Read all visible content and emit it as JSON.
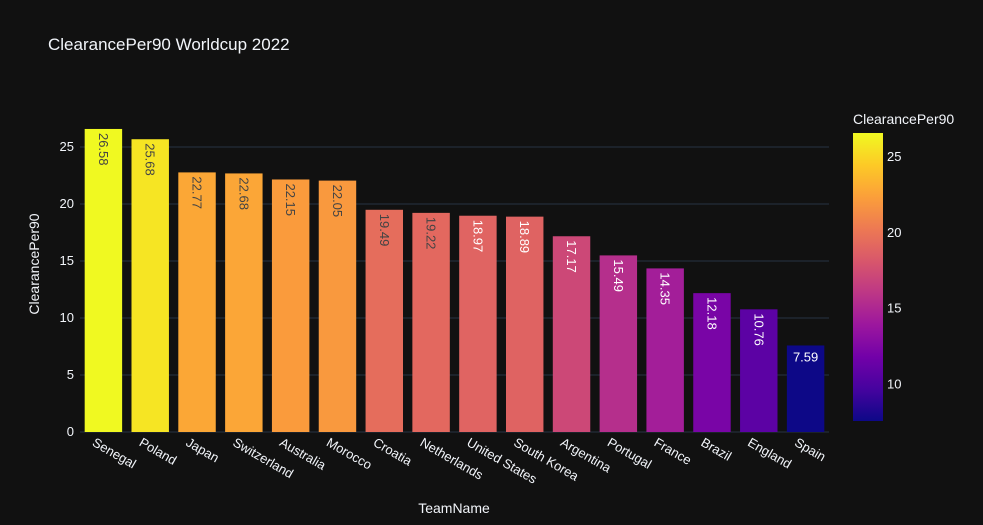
{
  "chart_data": {
    "type": "bar",
    "title": "ClearancePer90 Worldcup 2022",
    "xlabel": "TeamName",
    "ylabel": "ClearancePer90",
    "categories": [
      "Senegal",
      "Poland",
      "Japan",
      "Switzerland",
      "Australia",
      "Morocco",
      "Croatia",
      "Netherlands",
      "United States",
      "South Korea",
      "Argentina",
      "Portugal",
      "France",
      "Brazil",
      "England",
      "Spain"
    ],
    "values": [
      26.58,
      25.68,
      22.77,
      22.68,
      22.15,
      22.05,
      19.49,
      19.22,
      18.97,
      18.89,
      17.17,
      15.49,
      14.35,
      12.18,
      10.76,
      7.59
    ],
    "value_labels": [
      "26.58",
      "25.68",
      "22.77",
      "22.68",
      "22.15",
      "22.05",
      "19.49",
      "19.22",
      "18.97",
      "18.89",
      "17.17",
      "15.49",
      "14.35",
      "12.18",
      "10.76",
      "7.59"
    ],
    "ylim": [
      0,
      27.98
    ],
    "yticks": [
      0,
      5,
      10,
      15,
      20,
      25
    ],
    "grid": true,
    "colorbar": {
      "title": "ClearancePer90",
      "range": [
        7.59,
        26.58
      ],
      "ticks": [
        10,
        15,
        20,
        25
      ],
      "colorscale": [
        "#0d0887",
        "#46039f",
        "#7201a8",
        "#9c179e",
        "#bd3786",
        "#d8576b",
        "#ed7953",
        "#fb9f3a",
        "#fdca26",
        "#f0f921"
      ]
    },
    "colors": {
      "background": "#111111",
      "gridline": "#283442",
      "text": "#f2f5fa",
      "label_dark": "#444444",
      "label_light": "#ffffff"
    }
  }
}
